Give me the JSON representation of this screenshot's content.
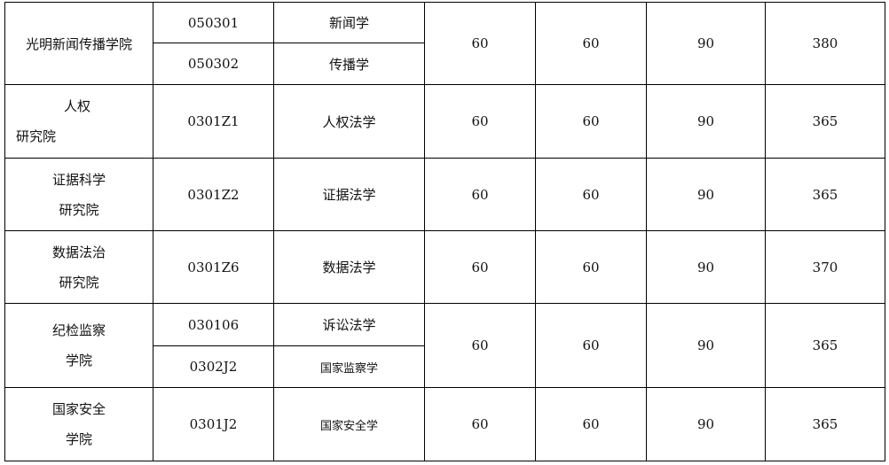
{
  "rows": [
    {
      "college": [
        "光明新闻传播学院"
      ],
      "programs": [
        {
          "code": "050301",
          "name": "新闻学"
        },
        {
          "code": "050302",
          "name": "传播学"
        }
      ],
      "scores": [
        "60",
        "60",
        "90",
        "380"
      ]
    },
    {
      "college": [
        "人权",
        "研究院"
      ],
      "programs": [
        {
          "code": "0301Z1",
          "name": "人权法学"
        }
      ],
      "scores": [
        "60",
        "60",
        "90",
        "365"
      ]
    },
    {
      "college": [
        "证据科学",
        "研究院"
      ],
      "programs": [
        {
          "code": "0301Z2",
          "name": "证据法学"
        }
      ],
      "scores": [
        "60",
        "60",
        "90",
        "365"
      ]
    },
    {
      "college": [
        "数据法治",
        "研究院"
      ],
      "programs": [
        {
          "code": "0301Z6",
          "name": "数据法学"
        }
      ],
      "scores": [
        "60",
        "60",
        "90",
        "370"
      ]
    },
    {
      "college": [
        "纪检监察",
        "学院"
      ],
      "programs": [
        {
          "code": "030106",
          "name": "诉讼法学"
        },
        {
          "code": "0302J2",
          "name": "国家监察学"
        }
      ],
      "scores": [
        "60",
        "60",
        "90",
        "365"
      ]
    },
    {
      "college": [
        "国家安全",
        "学院"
      ],
      "programs": [
        {
          "code": "0301J2",
          "name": "国家安全学"
        }
      ],
      "scores": [
        "60",
        "60",
        "90",
        "365"
      ]
    }
  ]
}
